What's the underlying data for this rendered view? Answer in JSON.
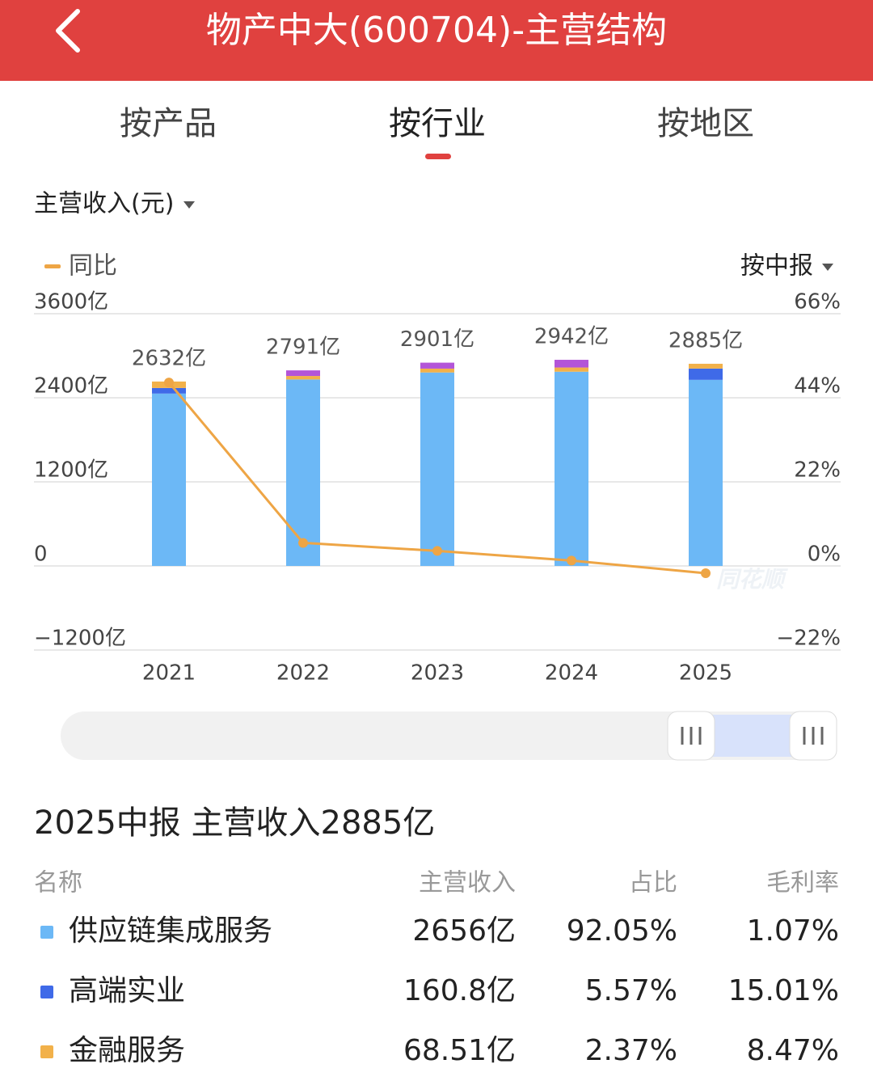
{
  "header": {
    "title": "物产中大(600704)-主营结构"
  },
  "tabs": [
    "按产品",
    "按行业",
    "按地区"
  ],
  "metric": "主营收入(元)",
  "period": "按中报",
  "chart_data": {
    "type": "bar",
    "categories": [
      "2021",
      "2022",
      "2023",
      "2024",
      "2025"
    ],
    "series": [
      {
        "name": "供应链集成服务",
        "color": "#6cb8f6",
        "values": [
          2460,
          2661,
          2761,
          2772,
          2656
        ]
      },
      {
        "name": "高端实业",
        "color": "#3f6ae8",
        "values": [
          80,
          null,
          null,
          null,
          160.8
        ]
      },
      {
        "name": "金融服务",
        "color": "#f2b14a",
        "values": [
          92,
          50,
          55,
          60,
          68.51
        ]
      },
      {
        "color": "#b355d8",
        "values": [
          null,
          80,
          85,
          110,
          null
        ]
      }
    ],
    "totals": [
      2632,
      2791,
      2901,
      2942,
      2885
    ],
    "total_labels": [
      "2632亿",
      "2791亿",
      "2901亿",
      "2942亿",
      "2885亿"
    ],
    "line": {
      "name": "同比",
      "color": "#eea545",
      "axis": "y2",
      "values": [
        48.0,
        6.04,
        3.94,
        1.41,
        -1.9
      ]
    },
    "ylim": [
      -1200,
      3600
    ],
    "yticks": [
      {
        "value": -1200,
        "label": "−1200亿"
      },
      0,
      {
        "value": 1200,
        "label": "1200亿"
      },
      {
        "value": 2400,
        "label": "2400亿"
      },
      {
        "value": 3600,
        "label": "3600亿"
      }
    ],
    "y2lim": [
      -22,
      66
    ],
    "y2ticks": [
      {
        "value": -22,
        "label": "−22%"
      },
      {
        "value": 0,
        "label": "0%"
      },
      {
        "value": 22,
        "label": "22%"
      },
      {
        "value": 44,
        "label": "44%"
      },
      {
        "value": 66,
        "label": "66%"
      }
    ],
    "grid": true,
    "watermark": "同花顺"
  },
  "summary": "2025中报 主营收入2885亿",
  "table": {
    "columns": [
      "名称",
      "主营收入",
      "占比",
      "毛利率"
    ],
    "rows": [
      {
        "color": "#6cb8f6",
        "cells": [
          "供应链集成服务",
          "2656亿",
          "92.05%",
          "1.07%"
        ]
      },
      {
        "color": "#3f6ae8",
        "cells": [
          "高端实业",
          "160.8亿",
          "5.57%",
          "15.01%"
        ]
      },
      {
        "color": "#f2b14a",
        "cells": [
          "金融服务",
          "68.51亿",
          "2.37%",
          "8.47%"
        ]
      }
    ]
  }
}
